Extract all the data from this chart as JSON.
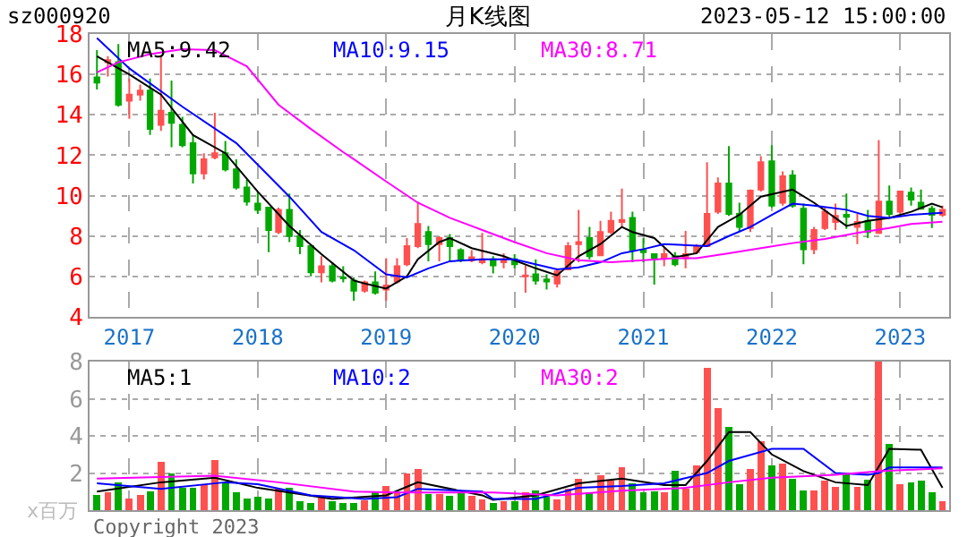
{
  "chart_data": [
    {
      "type": "candlestick",
      "title": "月K线图",
      "annotations": [
        "sz000920",
        "2023-05-12 15:00:00"
      ],
      "x": [
        "2016-10",
        "2016-11",
        "2016-12",
        "2017-01",
        "2017-02",
        "2017-03",
        "2017-04",
        "2017-05",
        "2017-06",
        "2017-07",
        "2017-08",
        "2017-09",
        "2017-10",
        "2017-11",
        "2017-12",
        "2018-01",
        "2018-02",
        "2018-03",
        "2018-04",
        "2018-05",
        "2018-06",
        "2018-07",
        "2018-08",
        "2018-09",
        "2018-10",
        "2018-11",
        "2018-12",
        "2019-01",
        "2019-02",
        "2019-03",
        "2019-04",
        "2019-05",
        "2019-06",
        "2019-07",
        "2019-08",
        "2019-09",
        "2019-10",
        "2019-11",
        "2019-12",
        "2020-01",
        "2020-02",
        "2020-03",
        "2020-04",
        "2020-05",
        "2020-06",
        "2020-07",
        "2020-08",
        "2020-09",
        "2020-10",
        "2020-11",
        "2020-12",
        "2021-01",
        "2021-02",
        "2021-03",
        "2021-04",
        "2021-05",
        "2021-06",
        "2021-07",
        "2021-08",
        "2021-09",
        "2021-10",
        "2021-11",
        "2021-12",
        "2022-01",
        "2022-02",
        "2022-03",
        "2022-04",
        "2022-05",
        "2022-06",
        "2022-07",
        "2022-08",
        "2022-09",
        "2022-10",
        "2022-11",
        "2022-12",
        "2023-01",
        "2023-02",
        "2023-03",
        "2023-04",
        "2023-05"
      ],
      "ohlc": [
        [
          15.85,
          17.2,
          15.25,
          15.6
        ],
        [
          16.6,
          16.9,
          15.9,
          16.7
        ],
        [
          16.6,
          17.5,
          14.4,
          14.5
        ],
        [
          14.7,
          15.8,
          13.8,
          15.0
        ],
        [
          15.0,
          15.5,
          14.7,
          15.2
        ],
        [
          15.2,
          15.8,
          13.0,
          13.3
        ],
        [
          13.5,
          16.9,
          13.2,
          14.2
        ],
        [
          14.1,
          15.7,
          12.4,
          13.6
        ],
        [
          13.5,
          13.9,
          12.4,
          12.5
        ],
        [
          12.6,
          13.0,
          10.6,
          11.1
        ],
        [
          11.1,
          12.1,
          10.8,
          11.8
        ],
        [
          11.9,
          14.1,
          11.8,
          12.1
        ],
        [
          12.1,
          12.7,
          11.2,
          11.3
        ],
        [
          11.3,
          11.8,
          10.3,
          10.4
        ],
        [
          10.4,
          10.8,
          9.5,
          9.7
        ],
        [
          9.6,
          10.2,
          9.1,
          9.3
        ],
        [
          9.4,
          9.4,
          7.2,
          8.3
        ],
        [
          8.2,
          9.4,
          8.1,
          9.3
        ],
        [
          9.3,
          10.1,
          7.7,
          8.0
        ],
        [
          8.0,
          8.3,
          7.1,
          7.5
        ],
        [
          7.5,
          7.6,
          6.0,
          6.2
        ],
        [
          6.2,
          7.0,
          5.7,
          6.5
        ],
        [
          6.5,
          6.7,
          5.7,
          5.8
        ],
        [
          5.95,
          6.5,
          5.7,
          5.9
        ],
        [
          5.8,
          5.95,
          4.8,
          5.3
        ],
        [
          5.3,
          5.8,
          5.2,
          5.7
        ],
        [
          5.7,
          6.25,
          5.1,
          5.2
        ],
        [
          5.35,
          6.9,
          4.8,
          5.55
        ],
        [
          5.75,
          6.9,
          5.65,
          6.5
        ],
        [
          6.6,
          7.9,
          6.5,
          7.5
        ],
        [
          7.5,
          9.7,
          7.4,
          8.6
        ],
        [
          8.2,
          8.5,
          6.75,
          7.6
        ],
        [
          7.6,
          8.0,
          6.75,
          7.9
        ],
        [
          7.9,
          8.1,
          6.75,
          7.5
        ],
        [
          7.3,
          7.4,
          6.7,
          6.85
        ],
        [
          6.8,
          7.3,
          6.7,
          6.95
        ],
        [
          6.7,
          8.15,
          6.6,
          6.85
        ],
        [
          6.85,
          7.0,
          6.15,
          6.55
        ],
        [
          6.7,
          7.15,
          6.4,
          6.85
        ],
        [
          6.85,
          7.1,
          6.4,
          6.6
        ],
        [
          6.0,
          6.55,
          5.2,
          6.05
        ],
        [
          6.1,
          6.85,
          5.6,
          5.8
        ],
        [
          5.85,
          6.1,
          5.35,
          5.75
        ],
        [
          5.65,
          6.4,
          5.45,
          6.25
        ],
        [
          6.35,
          7.7,
          6.3,
          7.5
        ],
        [
          7.6,
          9.3,
          6.7,
          7.7
        ],
        [
          7.9,
          8.45,
          6.85,
          7.0
        ],
        [
          7.05,
          8.75,
          7.0,
          8.2
        ],
        [
          8.2,
          9.2,
          8.1,
          8.75
        ],
        [
          8.7,
          10.35,
          8.4,
          8.8
        ],
        [
          8.9,
          9.2,
          6.7,
          7.3
        ],
        [
          7.3,
          7.9,
          6.7,
          7.2
        ],
        [
          7.1,
          7.1,
          5.6,
          6.9
        ],
        [
          6.9,
          7.4,
          6.5,
          7.1
        ],
        [
          7.0,
          7.2,
          6.5,
          6.6
        ],
        [
          6.9,
          8.25,
          6.4,
          7.1
        ],
        [
          7.2,
          7.6,
          7.1,
          7.5
        ],
        [
          7.5,
          11.65,
          7.45,
          9.1
        ],
        [
          9.2,
          10.9,
          9.1,
          10.6
        ],
        [
          10.6,
          12.45,
          9.0,
          9.1
        ],
        [
          9.1,
          9.65,
          8.2,
          8.45
        ],
        [
          8.4,
          10.3,
          8.2,
          10.25
        ],
        [
          10.3,
          11.95,
          10.2,
          11.65
        ],
        [
          11.7,
          12.5,
          9.4,
          9.5
        ],
        [
          9.65,
          11.2,
          9.5,
          10.95
        ],
        [
          11.0,
          11.25,
          9.4,
          9.5
        ],
        [
          9.35,
          9.6,
          6.6,
          7.35
        ],
        [
          7.35,
          8.45,
          7.1,
          8.3
        ],
        [
          8.4,
          9.4,
          8.3,
          9.2
        ],
        [
          8.7,
          9.6,
          8.3,
          9.0
        ],
        [
          9.05,
          10.1,
          8.35,
          8.95
        ],
        [
          8.45,
          9.1,
          7.6,
          8.7
        ],
        [
          8.75,
          9.3,
          7.9,
          8.2
        ],
        [
          8.15,
          12.75,
          8.1,
          9.7
        ],
        [
          9.7,
          10.5,
          8.95,
          9.1
        ],
        [
          9.2,
          10.2,
          9.0,
          10.2
        ],
        [
          10.15,
          10.4,
          9.5,
          9.8
        ],
        [
          9.65,
          10.3,
          9.35,
          9.35
        ],
        [
          9.35,
          9.5,
          8.4,
          9.05
        ],
        [
          9.05,
          9.5,
          8.95,
          9.3
        ]
      ],
      "series": [
        {
          "name": "MA5:9.42",
          "type": "line",
          "color": "#000000",
          "x": [
            "2016-10",
            "2017-01",
            "2017-04",
            "2017-07",
            "2017-10",
            "2018-01",
            "2018-04",
            "2018-07",
            "2018-10",
            "2018-11",
            "2019-01",
            "2019-03",
            "2019-04",
            "2019-06",
            "2019-07",
            "2019-09",
            "2019-12",
            "2020-03",
            "2020-05",
            "2020-07",
            "2020-09",
            "2020-11",
            "2020-12",
            "2021-02",
            "2021-04",
            "2021-06",
            "2021-08",
            "2021-10",
            "2021-12",
            "2022-03",
            "2022-05",
            "2022-08",
            "2022-10",
            "2022-12",
            "2023-02",
            "2023-04",
            "2023-05"
          ],
          "values": [
            16.9,
            16.0,
            15.0,
            13.0,
            12.1,
            10.2,
            8.5,
            7.1,
            5.8,
            5.65,
            5.4,
            6.0,
            6.85,
            7.7,
            7.9,
            7.4,
            7.0,
            6.4,
            6.05,
            7.0,
            7.6,
            8.45,
            8.2,
            7.9,
            6.95,
            7.15,
            8.45,
            9.05,
            9.95,
            10.3,
            9.65,
            8.5,
            8.75,
            8.9,
            9.2,
            9.6,
            9.42
          ]
        },
        {
          "name": "MA10:9.15",
          "type": "line",
          "color": "#0000ff",
          "x": [
            "2016-10",
            "2017-01",
            "2017-06",
            "2017-11",
            "2018-04",
            "2018-07",
            "2018-10",
            "2019-01",
            "2019-03",
            "2019-05",
            "2019-07",
            "2019-10",
            "2020-01",
            "2020-05",
            "2020-07",
            "2020-09",
            "2020-11",
            "2021-01",
            "2021-03",
            "2021-07",
            "2021-09",
            "2021-11",
            "2022-01",
            "2022-03",
            "2022-05",
            "2022-08",
            "2022-10",
            "2022-12",
            "2023-02",
            "2023-05"
          ],
          "values": [
            17.8,
            16.3,
            14.4,
            12.6,
            9.95,
            8.2,
            7.3,
            6.1,
            5.95,
            6.4,
            6.75,
            6.85,
            6.85,
            6.35,
            6.45,
            6.7,
            7.15,
            7.35,
            7.6,
            7.5,
            8.0,
            8.45,
            9.05,
            9.6,
            9.5,
            9.3,
            9.0,
            8.9,
            9.05,
            9.15
          ]
        },
        {
          "name": "MA30:8.71",
          "type": "line",
          "color": "#ff00ff",
          "x": [
            "2016-10",
            "2016-12",
            "2017-03",
            "2017-06",
            "2017-09",
            "2017-12",
            "2018-03",
            "2018-06",
            "2018-09",
            "2018-10",
            "2019-01",
            "2019-04",
            "2019-07",
            "2019-10",
            "2020-01",
            "2020-04",
            "2020-07",
            "2020-10",
            "2021-01",
            "2021-04",
            "2021-06",
            "2021-09",
            "2021-12",
            "2022-03",
            "2022-06",
            "2022-09",
            "2022-12",
            "2023-02",
            "2023-05"
          ],
          "values": [
            16.1,
            16.6,
            17.0,
            17.25,
            17.2,
            16.4,
            14.5,
            13.3,
            12.15,
            11.8,
            10.7,
            9.65,
            8.9,
            8.3,
            7.7,
            7.15,
            6.8,
            6.7,
            6.8,
            6.9,
            6.9,
            7.15,
            7.4,
            7.65,
            7.85,
            8.15,
            8.4,
            8.6,
            8.71
          ]
        }
      ],
      "xlim": [
        "2016-09-10",
        "2023-05-20"
      ],
      "xticks": [
        {
          "value": "2017-01-01",
          "label": "2017"
        },
        {
          "value": "2018-01-01",
          "label": "2018"
        },
        {
          "value": "2019-01-01",
          "label": "2019"
        },
        {
          "value": "2020-01-01",
          "label": "2020"
        },
        {
          "value": "2021-01-01",
          "label": "2021"
        },
        {
          "value": "2022-01-01",
          "label": "2022"
        },
        {
          "value": "2023-01-01",
          "label": "2023"
        }
      ],
      "ylim": [
        4,
        18
      ],
      "yticks": [
        4,
        6,
        8,
        10,
        12,
        14,
        16,
        18
      ],
      "grid": true
    },
    {
      "type": "bar",
      "ylabel": "x百万",
      "annotations": [
        "Copyright 2023"
      ],
      "x": [
        "2016-10",
        "2016-11",
        "2016-12",
        "2017-01",
        "2017-02",
        "2017-03",
        "2017-04",
        "2017-05",
        "2017-06",
        "2017-07",
        "2017-08",
        "2017-09",
        "2017-10",
        "2017-11",
        "2017-12",
        "2018-01",
        "2018-02",
        "2018-03",
        "2018-04",
        "2018-05",
        "2018-06",
        "2018-07",
        "2018-08",
        "2018-09",
        "2018-10",
        "2018-11",
        "2018-12",
        "2019-01",
        "2019-02",
        "2019-03",
        "2019-04",
        "2019-05",
        "2019-06",
        "2019-07",
        "2019-08",
        "2019-09",
        "2019-10",
        "2019-11",
        "2019-12",
        "2020-01",
        "2020-02",
        "2020-03",
        "2020-04",
        "2020-05",
        "2020-06",
        "2020-07",
        "2020-08",
        "2020-09",
        "2020-10",
        "2020-11",
        "2020-12",
        "2021-01",
        "2021-02",
        "2021-03",
        "2021-04",
        "2021-05",
        "2021-06",
        "2021-07",
        "2021-08",
        "2021-09",
        "2021-10",
        "2021-11",
        "2021-12",
        "2022-01",
        "2022-02",
        "2022-03",
        "2022-04",
        "2022-05",
        "2022-06",
        "2022-07",
        "2022-08",
        "2022-09",
        "2022-10",
        "2022-11",
        "2022-12",
        "2023-01",
        "2023-02",
        "2023-03",
        "2023-04",
        "2023-05"
      ],
      "values": [
        0.8,
        0.95,
        1.5,
        0.65,
        0.8,
        1.0,
        2.6,
        2.0,
        1.2,
        1.2,
        1.35,
        2.7,
        1.5,
        0.95,
        0.65,
        0.7,
        0.65,
        1.15,
        1.2,
        0.5,
        0.4,
        0.7,
        0.5,
        0.4,
        0.4,
        0.55,
        0.95,
        1.3,
        0.95,
        2.0,
        2.2,
        0.85,
        0.85,
        0.75,
        0.95,
        0.75,
        0.6,
        0.4,
        0.5,
        0.5,
        0.95,
        1.05,
        0.7,
        0.6,
        1.15,
        1.7,
        0.95,
        1.9,
        1.6,
        2.3,
        1.45,
        0.95,
        1.0,
        0.95,
        2.1,
        1.15,
        2.4,
        7.65,
        5.5,
        4.5,
        1.4,
        2.2,
        3.7,
        2.4,
        2.5,
        1.7,
        1.05,
        1.05,
        1.6,
        1.25,
        1.95,
        1.25,
        1.65,
        8.0,
        3.55,
        1.4,
        1.5,
        1.6,
        0.95,
        0.5
      ],
      "colors": [
        "#00a800",
        "#ff5050",
        "#00a800",
        "#ff5050",
        "#ff5050",
        "#00a800",
        "#ff5050",
        "#00a800",
        "#00a800",
        "#00a800",
        "#ff5050",
        "#ff5050",
        "#00a800",
        "#00a800",
        "#00a800",
        "#00a800",
        "#00a800",
        "#ff5050",
        "#00a800",
        "#00a800",
        "#00a800",
        "#ff5050",
        "#00a800",
        "#00a800",
        "#00a800",
        "#ff5050",
        "#00a800",
        "#ff5050",
        "#ff5050",
        "#ff5050",
        "#ff5050",
        "#00a800",
        "#ff5050",
        "#00a800",
        "#00a800",
        "#ff5050",
        "#ff5050",
        "#00a800",
        "#ff5050",
        "#00a800",
        "#ff5050",
        "#00a800",
        "#00a800",
        "#ff5050",
        "#ff5050",
        "#ff5050",
        "#00a800",
        "#ff5050",
        "#ff5050",
        "#ff5050",
        "#00a800",
        "#00a800",
        "#00a800",
        "#ff5050",
        "#00a800",
        "#ff5050",
        "#ff5050",
        "#ff5050",
        "#ff5050",
        "#00a800",
        "#00a800",
        "#ff5050",
        "#ff5050",
        "#00a800",
        "#ff5050",
        "#00a800",
        "#00a800",
        "#ff5050",
        "#ff5050",
        "#ff5050",
        "#00a800",
        "#ff5050",
        "#00a800",
        "#ff5050",
        "#00a800",
        "#ff5050",
        "#00a800",
        "#00a800",
        "#00a800",
        "#ff5050"
      ],
      "series": [
        {
          "name": "MA5:1",
          "type": "line",
          "color": "#000000",
          "x": [
            "2016-10",
            "2017-04",
            "2017-09",
            "2018-01",
            "2018-08",
            "2019-01",
            "2019-04",
            "2019-10",
            "2019-11",
            "2020-03",
            "2020-07",
            "2020-11",
            "2021-03",
            "2021-05",
            "2021-07",
            "2021-09",
            "2021-11",
            "2022-01",
            "2022-04",
            "2022-07",
            "2022-10",
            "2022-12",
            "2023-03",
            "2023-05"
          ],
          "values": [
            1.0,
            1.5,
            1.75,
            1.2,
            0.6,
            0.8,
            1.5,
            0.8,
            0.55,
            0.8,
            1.45,
            1.7,
            1.35,
            1.35,
            2.65,
            4.2,
            4.2,
            3.0,
            2.1,
            1.5,
            1.35,
            3.3,
            3.25,
            1.2
          ]
        },
        {
          "name": "MA10:2",
          "type": "line",
          "color": "#0000ff",
          "x": [
            "2016-10",
            "2017-04",
            "2017-10",
            "2018-01",
            "2018-06",
            "2018-11",
            "2019-02",
            "2019-04",
            "2019-10",
            "2019-11",
            "2020-03",
            "2020-07",
            "2020-11",
            "2021-03",
            "2021-07",
            "2021-09",
            "2022-01",
            "2022-04",
            "2022-07",
            "2022-10",
            "2022-11",
            "2022-12",
            "2023-05"
          ],
          "values": [
            1.45,
            1.15,
            1.5,
            1.4,
            0.8,
            0.6,
            0.7,
            1.15,
            1.0,
            0.6,
            0.6,
            1.2,
            1.3,
            1.45,
            2.0,
            2.65,
            3.3,
            3.3,
            2.0,
            1.9,
            2.0,
            2.3,
            2.3
          ]
        },
        {
          "name": "MA30:2",
          "type": "line",
          "color": "#ff00ff",
          "x": [
            "2016-10",
            "2017-09",
            "2018-03",
            "2018-10",
            "2019-02",
            "2019-10",
            "2019-11",
            "2020-05",
            "2020-11",
            "2021-05",
            "2021-09",
            "2022-01",
            "2022-07",
            "2022-11",
            "2023-05"
          ],
          "values": [
            1.7,
            1.85,
            1.5,
            1.0,
            0.95,
            0.95,
            0.95,
            0.8,
            1.05,
            1.2,
            1.5,
            1.75,
            1.9,
            2.1,
            2.25
          ]
        }
      ],
      "xlim": [
        "2016-09-10",
        "2023-05-20"
      ],
      "xticks": [
        "2017-01-01",
        "2018-01-01",
        "2019-01-01",
        "2020-01-01",
        "2021-01-01",
        "2022-01-01",
        "2023-01-01"
      ],
      "ylim": [
        0,
        8
      ],
      "yticks": [
        2,
        4,
        6,
        8
      ],
      "grid": true,
      "tick_labels": "y"
    }
  ]
}
